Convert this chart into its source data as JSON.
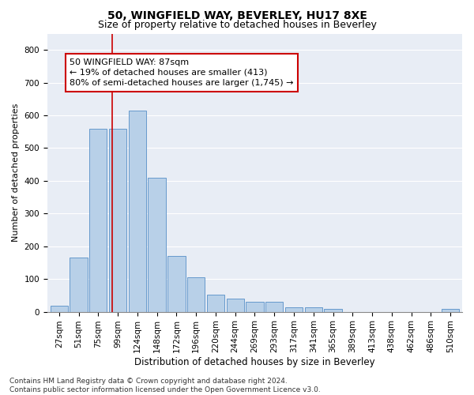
{
  "title1": "50, WINGFIELD WAY, BEVERLEY, HU17 8XE",
  "title2": "Size of property relative to detached houses in Beverley",
  "xlabel": "Distribution of detached houses by size in Beverley",
  "ylabel": "Number of detached properties",
  "categories": [
    "27sqm",
    "51sqm",
    "75sqm",
    "99sqm",
    "124sqm",
    "148sqm",
    "172sqm",
    "196sqm",
    "220sqm",
    "244sqm",
    "269sqm",
    "293sqm",
    "317sqm",
    "341sqm",
    "365sqm",
    "389sqm",
    "413sqm",
    "438sqm",
    "462sqm",
    "486sqm",
    "510sqm"
  ],
  "values": [
    18,
    165,
    560,
    560,
    615,
    410,
    170,
    105,
    52,
    40,
    30,
    30,
    14,
    14,
    9,
    0,
    0,
    0,
    0,
    0,
    8
  ],
  "bar_color": "#b8d0e8",
  "bar_edge_color": "#6699cc",
  "vline_color": "#cc0000",
  "annotation_line1": "50 WINGFIELD WAY: 87sqm",
  "annotation_line2": "← 19% of detached houses are smaller (413)",
  "annotation_line3": "80% of semi-detached houses are larger (1,745) →",
  "annotation_box_color": "#cc0000",
  "ylim": [
    0,
    850
  ],
  "yticks": [
    0,
    100,
    200,
    300,
    400,
    500,
    600,
    700,
    800
  ],
  "background_color": "#e8edf5",
  "footnote": "Contains HM Land Registry data © Crown copyright and database right 2024.\nContains public sector information licensed under the Open Government Licence v3.0.",
  "title1_fontsize": 10,
  "title2_fontsize": 9,
  "xlabel_fontsize": 8.5,
  "ylabel_fontsize": 8,
  "tick_fontsize": 7.5,
  "ann_fontsize": 8,
  "footnote_fontsize": 6.5
}
